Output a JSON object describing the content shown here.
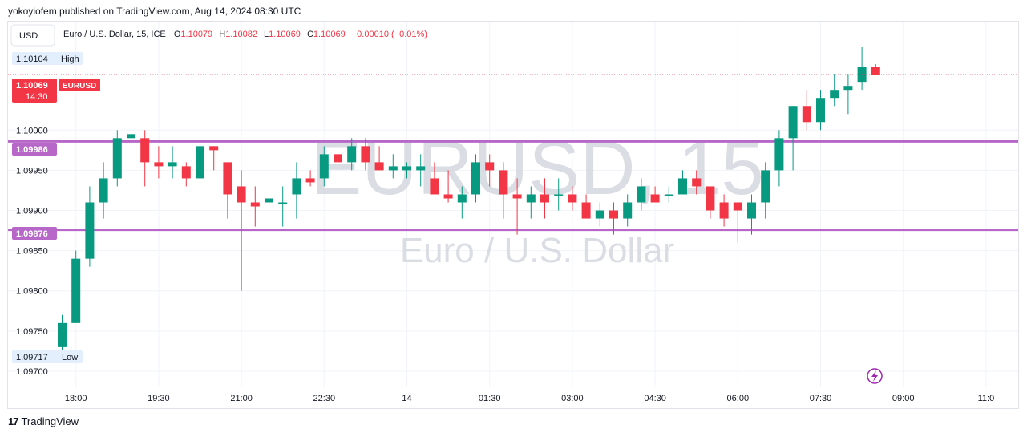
{
  "header": {
    "published": "yokoyiofem published on TradingView.com, Aug 14, 2024 08:30 UTC"
  },
  "toolbar": {
    "currency": "USD"
  },
  "legend": {
    "symbol": "Euro / U.S. Dollar, 15, ICE",
    "o_label": "O",
    "o_value": "1.10079",
    "h_label": "H",
    "h_value": "1.10082",
    "l_label": "L",
    "l_value": "1.10069",
    "c_label": "C",
    "c_value": "1.10069",
    "change": "−0.00010 (−0.01%)"
  },
  "watermark": {
    "ticker": "EURUSD, 15",
    "name": "Euro / U.S. Dollar"
  },
  "price_tags": {
    "high": {
      "value": "1.10104",
      "label": "High"
    },
    "low": {
      "value": "1.09717",
      "label": "Low"
    },
    "last": {
      "value": "1.10069",
      "label": "EURUSD",
      "countdown": "14:30"
    },
    "level_upper": "1.09986",
    "level_lower": "1.09876"
  },
  "footer": {
    "brand": "TradingView"
  },
  "colors": {
    "up": "#089981",
    "down": "#f23645",
    "level": "#b667c8",
    "grid": "#f0f3fa"
  },
  "chart_data": {
    "type": "candlestick",
    "title": "Euro / U.S. Dollar, 15, ICE",
    "ylim": [
      1.0968,
      1.10135
    ],
    "y_ticks": [
      "1.10000",
      "1.09950",
      "1.09900",
      "1.09850",
      "1.09800",
      "1.09750",
      "1.09700"
    ],
    "y_tick_values": [
      1.1,
      1.0995,
      1.099,
      1.0985,
      1.098,
      1.0975,
      1.097
    ],
    "x_ticks": [
      "18:00",
      "19:30",
      "21:00",
      "22:30",
      "14",
      "01:30",
      "03:00",
      "04:30",
      "06:00",
      "07:30",
      "09:00",
      "11:0"
    ],
    "x_tick_index": [
      1,
      7,
      13,
      19,
      25,
      31,
      37,
      43,
      49,
      55,
      61,
      67
    ],
    "horizontal_levels": [
      1.09986,
      1.09876
    ],
    "candles": [
      [
        1.0973,
        1.0976,
        1.09717,
        1.0977
      ],
      [
        1.0976,
        1.0984,
        1.0976,
        1.0985
      ],
      [
        1.0984,
        1.0991,
        1.0983,
        1.0993
      ],
      [
        1.0991,
        1.0994,
        1.0989,
        1.0996
      ],
      [
        1.0994,
        1.0999,
        1.0993,
        1.1
      ],
      [
        1.0999,
        1.09995,
        1.0998,
        1.1
      ],
      [
        1.0999,
        1.0996,
        1.0993,
        1.1
      ],
      [
        1.0996,
        1.09955,
        1.0994,
        1.0998
      ],
      [
        1.09955,
        1.0996,
        1.0994,
        1.0998
      ],
      [
        1.09955,
        1.0994,
        1.0993,
        1.0996
      ],
      [
        1.0994,
        1.0998,
        1.0993,
        1.0999
      ],
      [
        1.0998,
        1.09975,
        1.0995,
        1.0998
      ],
      [
        1.0996,
        1.0992,
        1.0989,
        1.0996
      ],
      [
        1.0993,
        1.0991,
        1.098,
        1.0995
      ],
      [
        1.0991,
        1.09905,
        1.0988,
        1.0993
      ],
      [
        1.0991,
        1.09915,
        1.0988,
        1.0993
      ],
      [
        1.0991,
        1.0991,
        1.0988,
        1.0993
      ],
      [
        1.0992,
        1.0994,
        1.0989,
        1.0996
      ],
      [
        1.0994,
        1.09935,
        1.0993,
        1.0995
      ],
      [
        1.0994,
        1.0997,
        1.0993,
        1.0998
      ],
      [
        1.0997,
        1.0996,
        1.0995,
        1.0998
      ],
      [
        1.0996,
        1.0998,
        1.0995,
        1.0999
      ],
      [
        1.0998,
        1.0996,
        1.0995,
        1.0999
      ],
      [
        1.0996,
        1.0995,
        1.0995,
        1.0998
      ],
      [
        1.0995,
        1.09955,
        1.0994,
        1.0997
      ],
      [
        1.0995,
        1.09955,
        1.0994,
        1.0996
      ],
      [
        1.0995,
        1.09955,
        1.0993,
        1.0997
      ],
      [
        1.0994,
        1.0992,
        1.0992,
        1.0996
      ],
      [
        1.0992,
        1.09915,
        1.0991,
        1.0995
      ],
      [
        1.0991,
        1.0992,
        1.0989,
        1.0993
      ],
      [
        1.0992,
        1.0996,
        1.0991,
        1.0997
      ],
      [
        1.0996,
        1.0995,
        1.0993,
        1.0997
      ],
      [
        1.0995,
        1.0992,
        1.0989,
        1.0996
      ],
      [
        1.0992,
        1.09915,
        1.0987,
        1.0994
      ],
      [
        1.0991,
        1.0992,
        1.0989,
        1.0993
      ],
      [
        1.0992,
        1.0991,
        1.0989,
        1.0994
      ],
      [
        1.0992,
        1.0992,
        1.099,
        1.0994
      ],
      [
        1.0992,
        1.0991,
        1.099,
        1.0993
      ],
      [
        1.0991,
        1.0989,
        1.0989,
        1.0992
      ],
      [
        1.0989,
        1.099,
        1.0988,
        1.0991
      ],
      [
        1.099,
        1.0989,
        1.0987,
        1.0991
      ],
      [
        1.0989,
        1.0991,
        1.0988,
        1.0992
      ],
      [
        1.0991,
        1.0993,
        1.099,
        1.0994
      ],
      [
        1.0992,
        1.0991,
        1.0991,
        1.0993
      ],
      [
        1.0992,
        1.0992,
        1.0991,
        1.0993
      ],
      [
        1.0992,
        1.0994,
        1.0992,
        1.0995
      ],
      [
        1.0994,
        1.0993,
        1.0992,
        1.0995
      ],
      [
        1.0993,
        1.099,
        1.0989,
        1.0993
      ],
      [
        1.0991,
        1.0989,
        1.0988,
        1.0992
      ],
      [
        1.0991,
        1.099,
        1.0986,
        1.0991
      ],
      [
        1.0989,
        1.0991,
        1.0987,
        1.0992
      ],
      [
        1.0991,
        1.0995,
        1.0989,
        1.0996
      ],
      [
        1.0995,
        1.0999,
        1.0993,
        1.1
      ],
      [
        1.0999,
        1.1003,
        1.0995,
        1.1003
      ],
      [
        1.1003,
        1.1001,
        1.1,
        1.1005
      ],
      [
        1.1001,
        1.1004,
        1.1,
        1.1005
      ],
      [
        1.1004,
        1.1005,
        1.1003,
        1.1007
      ],
      [
        1.1005,
        1.10055,
        1.1002,
        1.1007
      ],
      [
        1.1006,
        1.10079,
        1.1005,
        1.10104
      ],
      [
        1.10079,
        1.10069,
        1.10069,
        1.10082
      ]
    ]
  }
}
